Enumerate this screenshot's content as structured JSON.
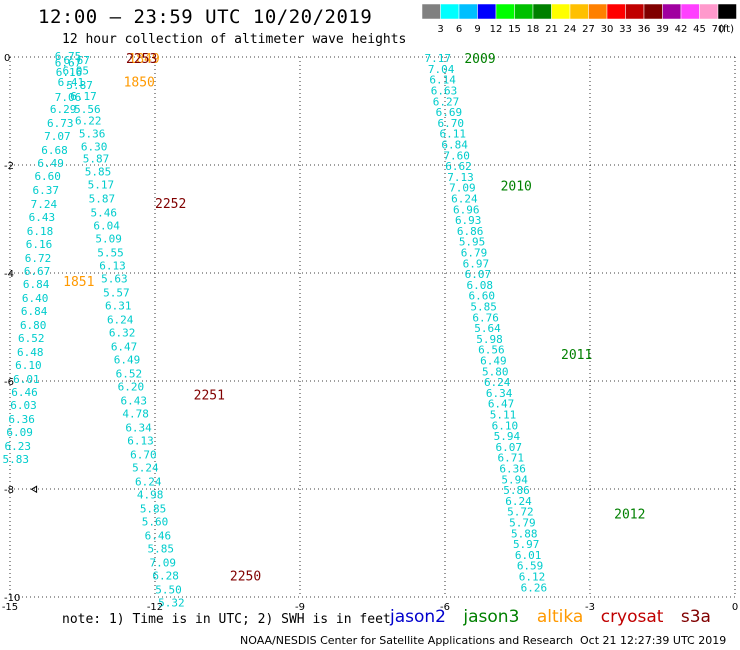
{
  "header": {
    "title": "12:00 – 23:59 UTC 10/20/2019",
    "subtitle": "12 hour collection of altimeter wave heights"
  },
  "colorbar": {
    "labels": [
      "3",
      "6",
      "9",
      "12",
      "15",
      "18",
      "21",
      "24",
      "27",
      "30",
      "33",
      "36",
      "39",
      "42",
      "45",
      "70"
    ],
    "unit": "(ft)",
    "colors": [
      "#808080",
      "#00ffff",
      "#00bfff",
      "#0000ff",
      "#00ff00",
      "#00c000",
      "#008000",
      "#ffff00",
      "#ffc000",
      "#ff8000",
      "#ff0000",
      "#c00000",
      "#800000",
      "#a000a0",
      "#ff40ff",
      "#ff99cc",
      "#000000"
    ]
  },
  "footer": {
    "note": "note:  1) Time is in UTC; 2) SWH is in feet",
    "legend": [
      {
        "name": "jason2",
        "color": "#0000cc"
      },
      {
        "name": "jason3",
        "color": "#008000"
      },
      {
        "name": "altika",
        "color": "#ff9900"
      },
      {
        "name": "cryosat",
        "color": "#c00000"
      },
      {
        "name": "s3a",
        "color": "#800000"
      }
    ],
    "credit": "NOAA/NESDIS Center for Satellite Applications and Research",
    "timestamp": "Oct 21 12:27:39 UTC 2019"
  },
  "chart_data": {
    "type": "scatter",
    "xlim": [
      -15,
      0
    ],
    "ylim": [
      -10,
      0
    ],
    "xticks": [
      "-15",
      "-12",
      "-9",
      "-6",
      "-3",
      "0"
    ],
    "yticks": [
      "0",
      "-2",
      "-4",
      "-6",
      "-8",
      "-10"
    ],
    "grid": true,
    "colors": {
      "wave": "#00cccc",
      "jason3": "#008000",
      "altika": "#ff9900",
      "s3a": "#800000"
    },
    "series": [
      {
        "name": "jason3",
        "pass_labels": [
          {
            "text": "2009",
            "x": -5.6,
            "y": -0.02
          },
          {
            "text": "2010",
            "x": -4.85,
            "y": -2.38
          },
          {
            "text": "2011",
            "x": -3.6,
            "y": -5.5
          },
          {
            "text": "2012",
            "x": -2.5,
            "y": -8.45
          }
        ],
        "points": [
          {
            "x": -6.15,
            "y": -0.02,
            "v": "7.17"
          },
          {
            "x": -6.08,
            "y": -0.22,
            "v": "7.04"
          },
          {
            "x": -6.05,
            "y": -0.42,
            "v": "6.14"
          },
          {
            "x": -6.02,
            "y": -0.62,
            "v": "6.63"
          },
          {
            "x": -5.98,
            "y": -0.82,
            "v": "6.27"
          },
          {
            "x": -5.92,
            "y": -1.02,
            "v": "6.69"
          },
          {
            "x": -5.88,
            "y": -1.22,
            "v": "6.70"
          },
          {
            "x": -5.84,
            "y": -1.42,
            "v": "6.11"
          },
          {
            "x": -5.8,
            "y": -1.62,
            "v": "6.84"
          },
          {
            "x": -5.76,
            "y": -1.82,
            "v": "7.60"
          },
          {
            "x": -5.72,
            "y": -2.02,
            "v": "6.62"
          },
          {
            "x": -5.68,
            "y": -2.22,
            "v": "7.13"
          },
          {
            "x": -5.64,
            "y": -2.42,
            "v": "7.09"
          },
          {
            "x": -5.6,
            "y": -2.62,
            "v": "6.24"
          },
          {
            "x": -5.56,
            "y": -2.82,
            "v": "6.96"
          },
          {
            "x": -5.52,
            "y": -3.02,
            "v": "6.93"
          },
          {
            "x": -5.48,
            "y": -3.22,
            "v": "6.86"
          },
          {
            "x": -5.44,
            "y": -3.42,
            "v": "5.95"
          },
          {
            "x": -5.4,
            "y": -3.62,
            "v": "6.79"
          },
          {
            "x": -5.36,
            "y": -3.82,
            "v": "6.97"
          },
          {
            "x": -5.32,
            "y": -4.02,
            "v": "6.07"
          },
          {
            "x": -5.28,
            "y": -4.22,
            "v": "6.08"
          },
          {
            "x": -5.24,
            "y": -4.42,
            "v": "6.60"
          },
          {
            "x": -5.2,
            "y": -4.62,
            "v": "5.85"
          },
          {
            "x": -5.16,
            "y": -4.82,
            "v": "6.76"
          },
          {
            "x": -5.12,
            "y": -5.02,
            "v": "5.64"
          },
          {
            "x": -5.08,
            "y": -5.22,
            "v": "5.98"
          },
          {
            "x": -5.04,
            "y": -5.42,
            "v": "6.56"
          },
          {
            "x": -5.0,
            "y": -5.62,
            "v": "6.49"
          },
          {
            "x": -4.96,
            "y": -5.82,
            "v": "5.80"
          },
          {
            "x": -4.92,
            "y": -6.02,
            "v": "6.24"
          },
          {
            "x": -4.88,
            "y": -6.22,
            "v": "6.34"
          },
          {
            "x": -4.84,
            "y": -6.42,
            "v": "6.47"
          },
          {
            "x": -4.8,
            "y": -6.62,
            "v": "5.11"
          },
          {
            "x": -4.76,
            "y": -6.82,
            "v": "6.10"
          },
          {
            "x": -4.72,
            "y": -7.02,
            "v": "5.94"
          },
          {
            "x": -4.68,
            "y": -7.22,
            "v": "6.07"
          },
          {
            "x": -4.64,
            "y": -7.42,
            "v": "6.71"
          },
          {
            "x": -4.6,
            "y": -7.62,
            "v": "6.36"
          },
          {
            "x": -4.56,
            "y": -7.82,
            "v": "5.94"
          },
          {
            "x": -4.52,
            "y": -8.02,
            "v": "5.86"
          },
          {
            "x": -4.48,
            "y": -8.22,
            "v": "6.24"
          },
          {
            "x": -4.44,
            "y": -8.42,
            "v": "5.72"
          },
          {
            "x": -4.4,
            "y": -8.62,
            "v": "5.79"
          },
          {
            "x": -4.36,
            "y": -8.82,
            "v": "5.88"
          },
          {
            "x": -4.32,
            "y": -9.02,
            "v": "5.97"
          },
          {
            "x": -4.28,
            "y": -9.22,
            "v": "6.01"
          },
          {
            "x": -4.24,
            "y": -9.42,
            "v": "6.59"
          },
          {
            "x": -4.2,
            "y": -9.62,
            "v": "6.12"
          },
          {
            "x": -4.16,
            "y": -9.82,
            "v": "6.26"
          }
        ]
      },
      {
        "name": "altika",
        "pass_labels": [
          {
            "text": "1849",
            "x": -12.55,
            "y": -0.02
          },
          {
            "text": "1850",
            "x": -12.65,
            "y": -0.45
          },
          {
            "text": "1851",
            "x": -13.9,
            "y": -4.15
          }
        ],
        "points": [
          {
            "x": -13.8,
            "y": 0.02,
            "v": "6.75"
          },
          {
            "x": -13.8,
            "y": -0.1,
            "v": "6.67"
          },
          {
            "x": -13.78,
            "y": -0.28,
            "v": "6.16"
          },
          {
            "x": -13.74,
            "y": -0.46,
            "v": "6.41"
          },
          {
            "x": -13.8,
            "y": -0.74,
            "v": "7.06"
          },
          {
            "x": -13.9,
            "y": -0.96,
            "v": "6.29"
          },
          {
            "x": -13.96,
            "y": -1.22,
            "v": "6.73"
          },
          {
            "x": -14.02,
            "y": -1.46,
            "v": "7.07"
          },
          {
            "x": -14.08,
            "y": -1.72,
            "v": "6.68"
          },
          {
            "x": -14.16,
            "y": -1.96,
            "v": "6.49"
          },
          {
            "x": -14.22,
            "y": -2.2,
            "v": "6.60"
          },
          {
            "x": -14.26,
            "y": -2.46,
            "v": "6.37"
          },
          {
            "x": -14.3,
            "y": -2.72,
            "v": "7.24"
          },
          {
            "x": -14.34,
            "y": -2.96,
            "v": "6.43"
          },
          {
            "x": -14.38,
            "y": -3.22,
            "v": "6.18"
          },
          {
            "x": -14.4,
            "y": -3.46,
            "v": "6.16"
          },
          {
            "x": -14.42,
            "y": -3.72,
            "v": "6.72"
          },
          {
            "x": -14.44,
            "y": -3.96,
            "v": "6.67"
          },
          {
            "x": -14.46,
            "y": -4.2,
            "v": "6.84"
          },
          {
            "x": -14.48,
            "y": -4.46,
            "v": "6.40"
          },
          {
            "x": -14.5,
            "y": -4.7,
            "v": "6.84"
          },
          {
            "x": -14.52,
            "y": -4.96,
            "v": "6.80"
          },
          {
            "x": -14.56,
            "y": -5.2,
            "v": "6.52"
          },
          {
            "x": -14.58,
            "y": -5.46,
            "v": "6.48"
          },
          {
            "x": -14.62,
            "y": -5.7,
            "v": "6.10"
          },
          {
            "x": -14.66,
            "y": -5.96,
            "v": "6.01"
          },
          {
            "x": -14.7,
            "y": -6.2,
            "v": "6.46"
          },
          {
            "x": -14.72,
            "y": -6.44,
            "v": "6.03"
          },
          {
            "x": -14.76,
            "y": -6.7,
            "v": "6.36"
          },
          {
            "x": -14.8,
            "y": -6.94,
            "v": "6.09"
          },
          {
            "x": -14.84,
            "y": -7.2,
            "v": "6.23"
          },
          {
            "x": -14.88,
            "y": -7.44,
            "v": "5.83"
          }
        ]
      },
      {
        "name": "s3a",
        "pass_labels": [
          {
            "text": "2253",
            "x": -12.6,
            "y": -0.02
          },
          {
            "text": "2252",
            "x": -12.0,
            "y": -2.7
          },
          {
            "text": "2251",
            "x": -11.2,
            "y": -6.25
          },
          {
            "text": "2250",
            "x": -10.45,
            "y": -9.6
          }
        ],
        "points": [
          {
            "x": -13.62,
            "y": -0.06,
            "v": "6.67"
          },
          {
            "x": -13.64,
            "y": -0.25,
            "v": "6.05"
          },
          {
            "x": -13.56,
            "y": -0.52,
            "v": "5.87"
          },
          {
            "x": -13.48,
            "y": -0.72,
            "v": "6.17"
          },
          {
            "x": -13.4,
            "y": -0.96,
            "v": "5.56"
          },
          {
            "x": -13.38,
            "y": -1.18,
            "v": "6.22"
          },
          {
            "x": -13.3,
            "y": -1.42,
            "v": "5.36"
          },
          {
            "x": -13.26,
            "y": -1.66,
            "v": "6.30"
          },
          {
            "x": -13.22,
            "y": -1.88,
            "v": "5.87"
          },
          {
            "x": -13.18,
            "y": -2.12,
            "v": "5.85"
          },
          {
            "x": -13.12,
            "y": -2.36,
            "v": "5.17"
          },
          {
            "x": -13.1,
            "y": -2.62,
            "v": "5.87"
          },
          {
            "x": -13.06,
            "y": -2.88,
            "v": "5.46"
          },
          {
            "x": -13.0,
            "y": -3.12,
            "v": "6.04"
          },
          {
            "x": -12.96,
            "y": -3.36,
            "v": "5.09"
          },
          {
            "x": -12.92,
            "y": -3.62,
            "v": "5.55"
          },
          {
            "x": -12.88,
            "y": -3.86,
            "v": "6.13"
          },
          {
            "x": -12.84,
            "y": -4.1,
            "v": "5.63"
          },
          {
            "x": -12.8,
            "y": -4.36,
            "v": "5.57"
          },
          {
            "x": -12.76,
            "y": -4.6,
            "v": "6.31"
          },
          {
            "x": -12.72,
            "y": -4.86,
            "v": "6.24"
          },
          {
            "x": -12.68,
            "y": -5.1,
            "v": "6.32"
          },
          {
            "x": -12.64,
            "y": -5.36,
            "v": "6.47"
          },
          {
            "x": -12.58,
            "y": -5.6,
            "v": "6.49"
          },
          {
            "x": -12.54,
            "y": -5.86,
            "v": "6.52"
          },
          {
            "x": -12.5,
            "y": -6.1,
            "v": "6.20"
          },
          {
            "x": -12.44,
            "y": -6.36,
            "v": "6.43"
          },
          {
            "x": -12.4,
            "y": -6.6,
            "v": "4.78"
          },
          {
            "x": -12.34,
            "y": -6.86,
            "v": "6.34"
          },
          {
            "x": -12.3,
            "y": -7.1,
            "v": "6.13"
          },
          {
            "x": -12.24,
            "y": -7.36,
            "v": "6.70"
          },
          {
            "x": -12.2,
            "y": -7.6,
            "v": "5.24"
          },
          {
            "x": -12.14,
            "y": -7.86,
            "v": "6.24"
          },
          {
            "x": -12.1,
            "y": -8.1,
            "v": "4.98"
          },
          {
            "x": -12.04,
            "y": -8.36,
            "v": "5.85"
          },
          {
            "x": -12.0,
            "y": -8.6,
            "v": "5.60"
          },
          {
            "x": -11.94,
            "y": -8.86,
            "v": "6.46"
          },
          {
            "x": -11.88,
            "y": -9.1,
            "v": "5.85"
          },
          {
            "x": -11.84,
            "y": -9.36,
            "v": "7.09"
          },
          {
            "x": -11.78,
            "y": -9.6,
            "v": "6.28"
          },
          {
            "x": -11.72,
            "y": -9.86,
            "v": "5.50"
          },
          {
            "x": -11.66,
            "y": -10.1,
            "v": "5.32"
          }
        ]
      }
    ]
  }
}
